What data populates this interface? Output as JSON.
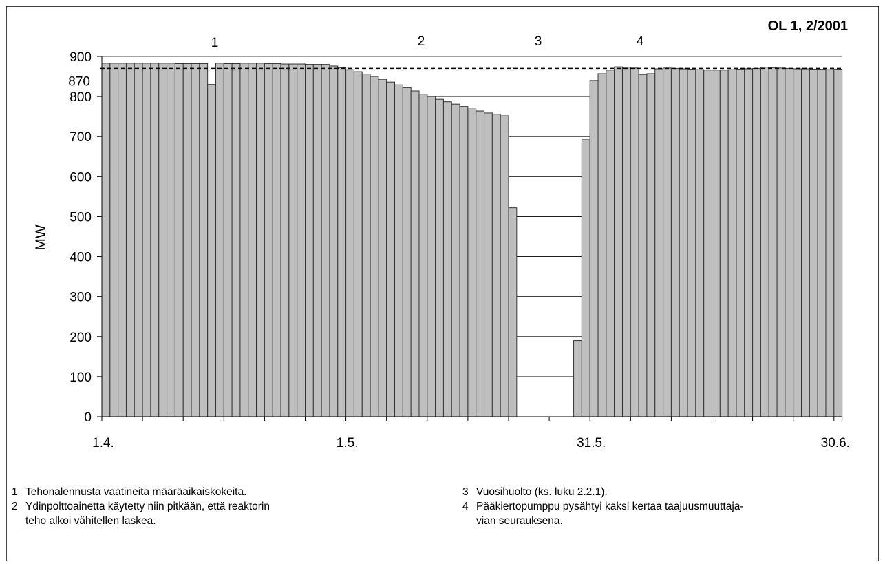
{
  "chart_data": {
    "type": "bar",
    "title": "OL 1, 2/2001",
    "y_label": "MW",
    "color": "#bfbfbf",
    "categories": [
      "1.4.",
      null,
      null,
      null,
      null,
      null,
      null,
      null,
      null,
      null,
      null,
      null,
      null,
      null,
      null,
      null,
      null,
      null,
      null,
      null,
      null,
      null,
      null,
      null,
      null,
      null,
      null,
      null,
      null,
      null,
      "1.5.",
      null,
      null,
      null,
      null,
      null,
      null,
      null,
      null,
      null,
      null,
      null,
      null,
      null,
      null,
      null,
      null,
      null,
      null,
      null,
      null,
      null,
      null,
      null,
      null,
      null,
      null,
      null,
      null,
      null,
      "31.5.",
      null,
      null,
      null,
      null,
      null,
      null,
      null,
      null,
      null,
      null,
      null,
      null,
      null,
      null,
      null,
      null,
      null,
      null,
      null,
      null,
      null,
      null,
      null,
      null,
      null,
      null,
      null,
      null,
      null,
      "30.6."
    ],
    "values": [
      883,
      883,
      883,
      883,
      883,
      883,
      883,
      883,
      883,
      882,
      882,
      882,
      882,
      830,
      883,
      882,
      882,
      883,
      883,
      883,
      882,
      882,
      881,
      881,
      881,
      880,
      880,
      880,
      876,
      872,
      867,
      862,
      856,
      850,
      843,
      836,
      829,
      822,
      814,
      806,
      800,
      793,
      787,
      781,
      775,
      769,
      764,
      759,
      756,
      752,
      522,
      0,
      0,
      0,
      0,
      0,
      0,
      0,
      190,
      692,
      840,
      857,
      866,
      874,
      873,
      871,
      855,
      857,
      869,
      871,
      870,
      869,
      868,
      867,
      866,
      866,
      866,
      867,
      868,
      869,
      870,
      873,
      872,
      871,
      870,
      869,
      869,
      868,
      868,
      867,
      868
    ],
    "ylim": [
      0,
      900
    ],
    "yticks": [
      0,
      100,
      200,
      300,
      400,
      500,
      600,
      700,
      800,
      900
    ],
    "reference_line": 870,
    "grid": true,
    "annotations": [
      "1",
      "2",
      "3",
      "4"
    ],
    "notes": [
      {
        "number": "1",
        "lines": [
          "Tehonalennusta vaatineita määräaikaiskokeita."
        ]
      },
      {
        "number": "2",
        "lines": [
          "Ydinpolttoainetta käytetty niin pitkään, että reaktorin",
          "teho alkoi vähitellen laskea."
        ]
      },
      {
        "number": "3",
        "lines": [
          "Vuosihuolto (ks. luku 2.2.1)."
        ]
      },
      {
        "number": "4",
        "lines": [
          "Pääkiertopumppu pysähtyi kaksi kertaa taajuusmuuttaja-",
          "vian seurauksena."
        ]
      }
    ]
  }
}
